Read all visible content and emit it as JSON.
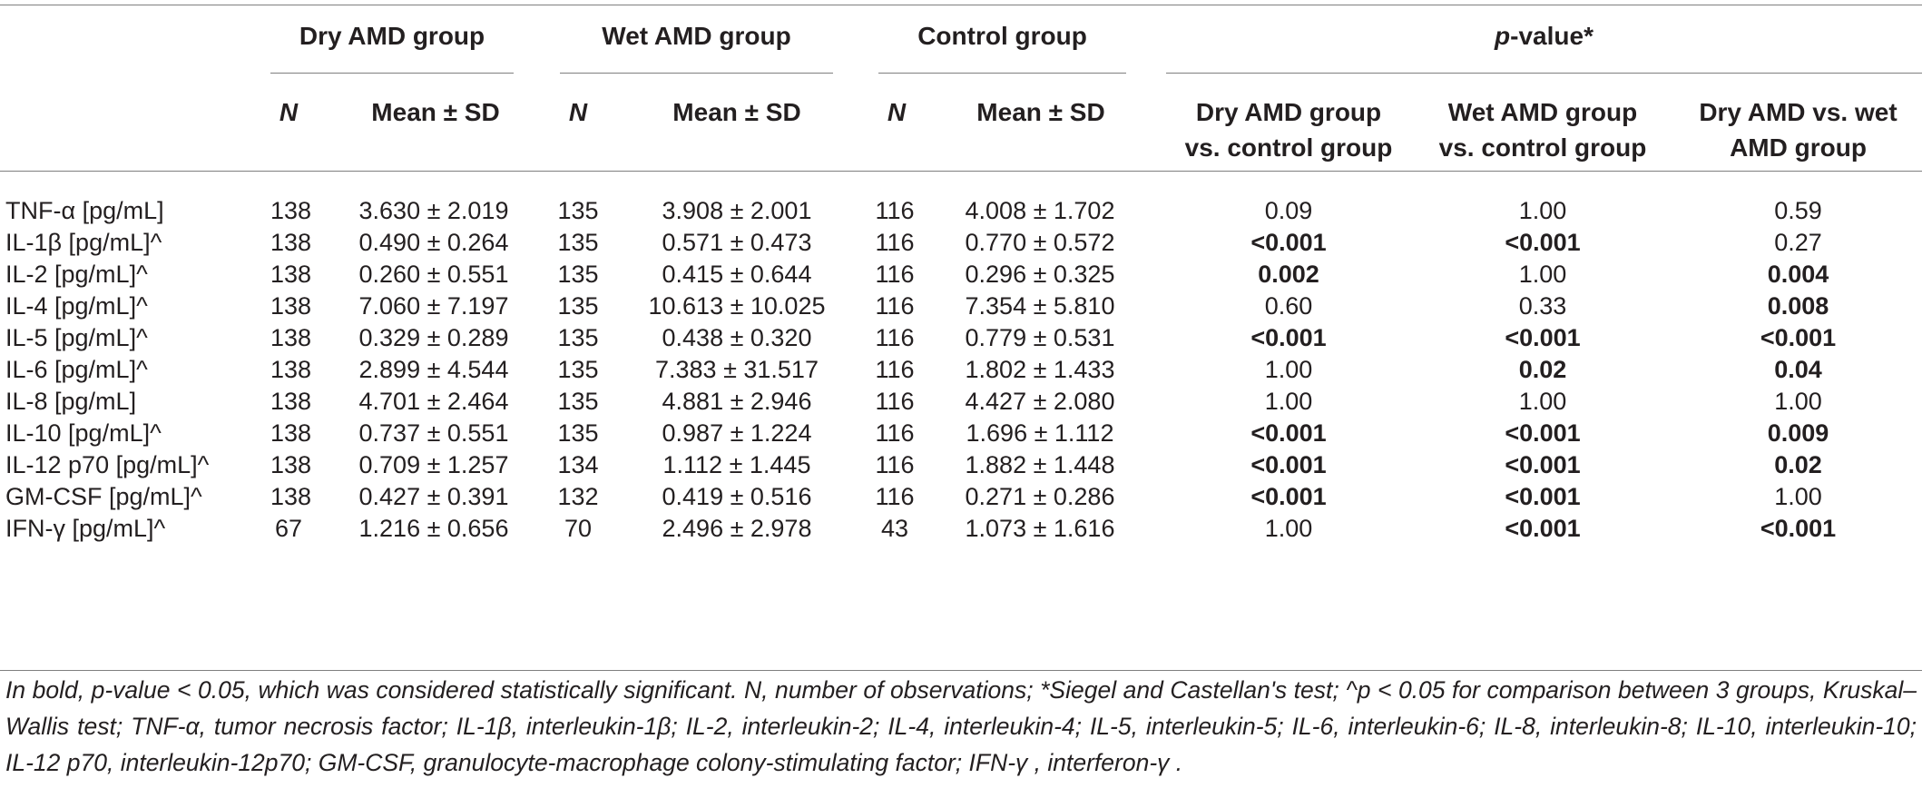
{
  "header": {
    "groups": {
      "dry": "Dry AMD group",
      "wet": "Wet AMD group",
      "control": "Control group",
      "pvalue_p": "p",
      "pvalue_rest": "-value*"
    },
    "sub": {
      "n": "N",
      "mean": "Mean ± SD",
      "dry_vs_control_1": "Dry AMD group",
      "dry_vs_control_2": "vs. control group",
      "wet_vs_control_1": "Wet AMD group",
      "wet_vs_control_2": "vs. control group",
      "dry_vs_wet_1": "Dry AMD vs. wet",
      "dry_vs_wet_2": "AMD group"
    }
  },
  "rows": [
    {
      "label": "TNF-α [pg/mL]",
      "dry_n": "138",
      "dry_mean": "3.630 ± 2.019",
      "wet_n": "135",
      "wet_mean": "3.908 ± 2.001",
      "ctrl_n": "116",
      "ctrl_mean": "4.008 ± 1.702",
      "p_dc": "0.09",
      "p_wc": "1.00",
      "p_dw": "0.59",
      "bold": [
        false,
        false,
        false
      ]
    },
    {
      "label": "IL-1β [pg/mL]^",
      "dry_n": "138",
      "dry_mean": "0.490 ± 0.264",
      "wet_n": "135",
      "wet_mean": "0.571 ± 0.473",
      "ctrl_n": "116",
      "ctrl_mean": "0.770 ± 0.572",
      "p_dc": "<0.001",
      "p_wc": "<0.001",
      "p_dw": "0.27",
      "bold": [
        true,
        true,
        false
      ]
    },
    {
      "label": "IL-2 [pg/mL]^",
      "dry_n": "138",
      "dry_mean": "0.260 ± 0.551",
      "wet_n": "135",
      "wet_mean": "0.415 ± 0.644",
      "ctrl_n": "116",
      "ctrl_mean": "0.296 ± 0.325",
      "p_dc": "0.002",
      "p_wc": "1.00",
      "p_dw": "0.004",
      "bold": [
        true,
        false,
        true
      ]
    },
    {
      "label": "IL-4 [pg/mL]^",
      "dry_n": "138",
      "dry_mean": "7.060 ± 7.197",
      "wet_n": "135",
      "wet_mean": "10.613 ± 10.025",
      "ctrl_n": "116",
      "ctrl_mean": "7.354 ± 5.810",
      "p_dc": "0.60",
      "p_wc": "0.33",
      "p_dw": "0.008",
      "bold": [
        false,
        false,
        true
      ]
    },
    {
      "label": "IL-5 [pg/mL]^",
      "dry_n": "138",
      "dry_mean": "0.329 ± 0.289",
      "wet_n": "135",
      "wet_mean": "0.438 ± 0.320",
      "ctrl_n": "116",
      "ctrl_mean": "0.779 ± 0.531",
      "p_dc": "<0.001",
      "p_wc": "<0.001",
      "p_dw": "<0.001",
      "bold": [
        true,
        true,
        true
      ]
    },
    {
      "label": "IL-6 [pg/mL]^",
      "dry_n": "138",
      "dry_mean": "2.899 ± 4.544",
      "wet_n": "135",
      "wet_mean": "7.383 ± 31.517",
      "ctrl_n": "116",
      "ctrl_mean": "1.802 ± 1.433",
      "p_dc": "1.00",
      "p_wc": "0.02",
      "p_dw": "0.04",
      "bold": [
        false,
        true,
        true
      ]
    },
    {
      "label": "IL-8 [pg/mL]",
      "dry_n": "138",
      "dry_mean": "4.701 ± 2.464",
      "wet_n": "135",
      "wet_mean": "4.881 ± 2.946",
      "ctrl_n": "116",
      "ctrl_mean": "4.427 ± 2.080",
      "p_dc": "1.00",
      "p_wc": "1.00",
      "p_dw": "1.00",
      "bold": [
        false,
        false,
        false
      ]
    },
    {
      "label": "IL-10 [pg/mL]^",
      "dry_n": "138",
      "dry_mean": "0.737 ± 0.551",
      "wet_n": "135",
      "wet_mean": "0.987 ± 1.224",
      "ctrl_n": "116",
      "ctrl_mean": "1.696 ± 1.112",
      "p_dc": "<0.001",
      "p_wc": "<0.001",
      "p_dw": "0.009",
      "bold": [
        true,
        true,
        true
      ]
    },
    {
      "label": "IL-12 p70 [pg/mL]^",
      "dry_n": "138",
      "dry_mean": "0.709 ± 1.257",
      "wet_n": "134",
      "wet_mean": "1.112 ± 1.445",
      "ctrl_n": "116",
      "ctrl_mean": "1.882 ± 1.448",
      "p_dc": "<0.001",
      "p_wc": "<0.001",
      "p_dw": "0.02",
      "bold": [
        true,
        true,
        true
      ]
    },
    {
      "label": "GM-CSF [pg/mL]^",
      "dry_n": "138",
      "dry_mean": "0.427 ± 0.391",
      "wet_n": "132",
      "wet_mean": "0.419 ± 0.516",
      "ctrl_n": "116",
      "ctrl_mean": "0.271 ± 0.286",
      "p_dc": "<0.001",
      "p_wc": "<0.001",
      "p_dw": "1.00",
      "bold": [
        true,
        true,
        false
      ]
    },
    {
      "label": "IFN-γ [pg/mL]^",
      "dry_n": "67",
      "dry_mean": "1.216 ± 0.656",
      "wet_n": "70",
      "wet_mean": "2.496 ± 2.978",
      "ctrl_n": "43",
      "ctrl_mean": "1.073 ± 1.616",
      "p_dc": "1.00",
      "p_wc": "<0.001",
      "p_dw": "<0.001",
      "bold": [
        false,
        true,
        true
      ]
    }
  ],
  "footnote": "In bold, p-value < 0.05, which was considered statistically significant. N, number of observations; *Siegel and Castellan's test; ^p < 0.05 for comparison between 3 groups, Kruskal–Wallis test; TNF-α, tumor necrosis factor; IL-1β, interleukin-1β; IL-2, interleukin-2; IL-4, interleukin-4; IL-5, interleukin-5; IL-6, interleukin-6; IL-8, interleukin-8; IL-10, interleukin-10; IL-12 p70, interleukin-12p70; GM-CSF, granulocyte-macrophage colony-stimulating factor; IFN-γ , interferon-γ ."
}
